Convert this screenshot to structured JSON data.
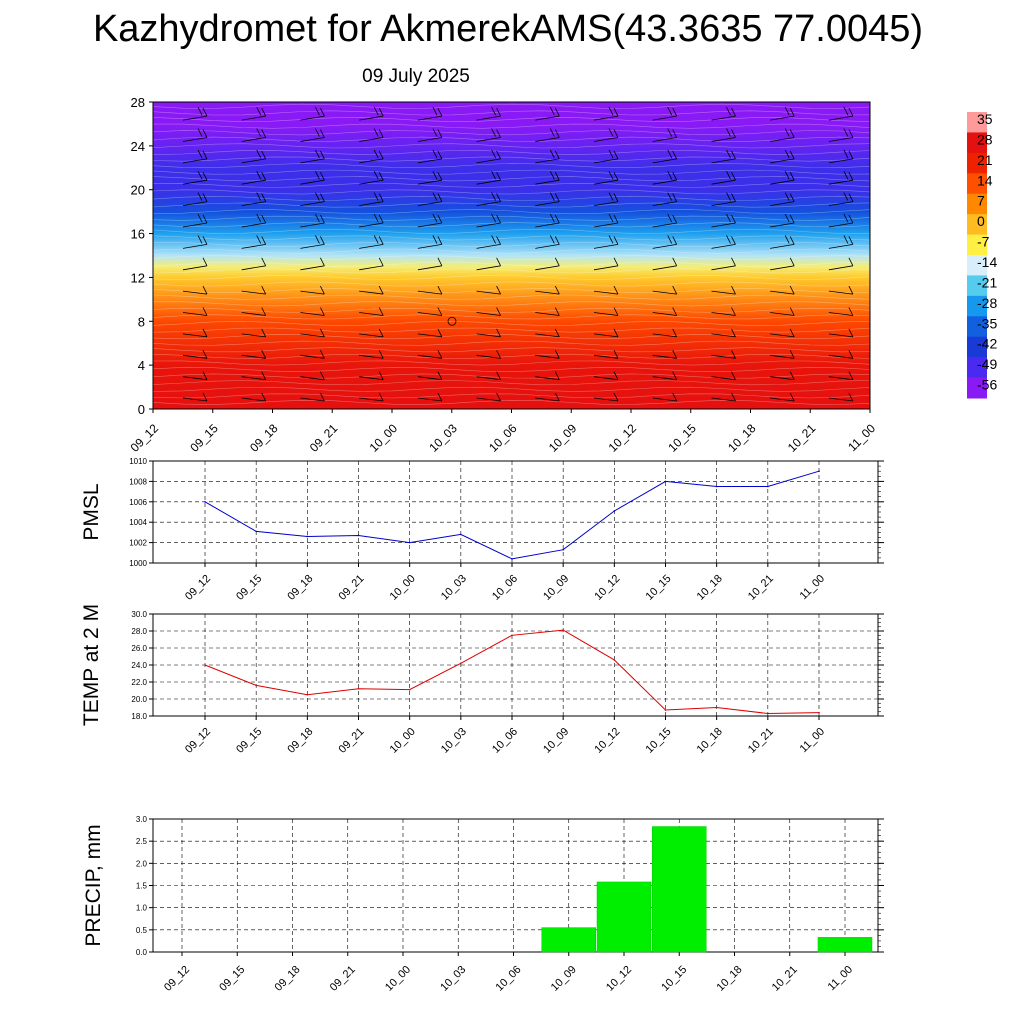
{
  "header": {
    "title": "Kazhydromet for AkmerekAMS(43.3635 77.0045)",
    "subtitle": "09 July 2025"
  },
  "chart_data": [
    {
      "type": "heatmap",
      "name": "vertical-profile",
      "x_labels": [
        "09_12",
        "09_15",
        "09_18",
        "09_21",
        "10_00",
        "10_03",
        "10_06",
        "10_09",
        "10_12",
        "10_15",
        "10_18",
        "10_21",
        "11_00"
      ],
      "y_ticks": [
        0,
        4,
        8,
        12,
        16,
        20,
        24,
        28
      ],
      "ylim": [
        0,
        28
      ],
      "color_levels": [
        "35",
        "28",
        "21",
        "14",
        "7",
        "0",
        "-7",
        "-14",
        "-21",
        "-28",
        "-35",
        "-42",
        "-49",
        "-56"
      ],
      "color_stops": [
        {
          "value": 35,
          "color": "#ff9a9a"
        },
        {
          "value": 28,
          "color": "#e51010"
        },
        {
          "value": 21,
          "color": "#ee2200"
        },
        {
          "value": 14,
          "color": "#ff5000"
        },
        {
          "value": 7,
          "color": "#ff8800"
        },
        {
          "value": 0,
          "color": "#ffbb22"
        },
        {
          "value": -7,
          "color": "#ffee44"
        },
        {
          "value": -14,
          "color": "#d8eefa"
        },
        {
          "value": -21,
          "color": "#55ccee"
        },
        {
          "value": -28,
          "color": "#1599ee"
        },
        {
          "value": -35,
          "color": "#1060e0"
        },
        {
          "value": -42,
          "color": "#1a3ad8"
        },
        {
          "value": -49,
          "color": "#4a2af0"
        },
        {
          "value": -56,
          "color": "#8a1af5"
        }
      ],
      "temperature_profile": [
        {
          "height": 0,
          "value": 28
        },
        {
          "height": 4,
          "value": 26
        },
        {
          "height": 8,
          "value": 15
        },
        {
          "height": 12,
          "value": -2
        },
        {
          "height": 13,
          "value": -9
        },
        {
          "height": 14,
          "value": -16
        },
        {
          "height": 16,
          "value": -27
        },
        {
          "height": 18,
          "value": -38
        },
        {
          "height": 20,
          "value": -47
        },
        {
          "height": 22,
          "value": -47
        },
        {
          "height": 24,
          "value": -52
        },
        {
          "height": 26,
          "value": -56
        },
        {
          "height": 28,
          "value": -56
        }
      ]
    },
    {
      "type": "line",
      "name": "pmsl",
      "ylabel": "PMSL",
      "x_labels": [
        "09_12",
        "09_15",
        "09_18",
        "09_21",
        "10_00",
        "10_03",
        "10_06",
        "10_09",
        "10_12",
        "10_15",
        "10_18",
        "10_21",
        "11_00"
      ],
      "values": [
        1006.0,
        1003.1,
        1002.6,
        1002.7,
        1002.0,
        1002.8,
        1000.4,
        1001.3,
        1005.1,
        1008.0,
        1007.5,
        1007.5,
        1009.0
      ],
      "ylim": [
        1000,
        1010
      ],
      "y_ticks": [
        "1010",
        "1008",
        "1006",
        "1004",
        "1002",
        "1000"
      ],
      "color": "#0000cc",
      "grid": true
    },
    {
      "type": "line",
      "name": "temp2m",
      "ylabel": "TEMP at 2 M",
      "x_labels": [
        "09_12",
        "09_15",
        "09_18",
        "09_21",
        "10_00",
        "10_03",
        "10_06",
        "10_09",
        "10_12",
        "10_15",
        "10_18",
        "10_21",
        "11_00"
      ],
      "values": [
        24.0,
        21.6,
        20.5,
        21.2,
        21.1,
        24.2,
        27.5,
        28.1,
        24.6,
        18.7,
        19.0,
        18.3,
        18.4
      ],
      "ylim": [
        18,
        30
      ],
      "y_ticks": [
        "30.0",
        "28.0",
        "26.0",
        "24.0",
        "22.0",
        "20.0",
        "18.0"
      ],
      "color": "#dd0000",
      "grid": true
    },
    {
      "type": "bar",
      "name": "precip",
      "ylabel": "PRECIP, mm",
      "x_labels": [
        "09_12",
        "09_15",
        "09_18",
        "09_21",
        "10_00",
        "10_03",
        "10_06",
        "10_09",
        "10_12",
        "10_15",
        "10_18",
        "10_21",
        "11_00"
      ],
      "values": [
        0,
        0,
        0,
        0,
        0,
        0,
        0,
        0.55,
        1.58,
        2.83,
        0,
        0,
        0.33
      ],
      "ylim": [
        0,
        3
      ],
      "y_ticks": [
        "3.0",
        "2.5",
        "2.0",
        "1.5",
        "1.0",
        "0.5",
        "0.0"
      ],
      "color": "#00ee00",
      "grid": true
    }
  ]
}
